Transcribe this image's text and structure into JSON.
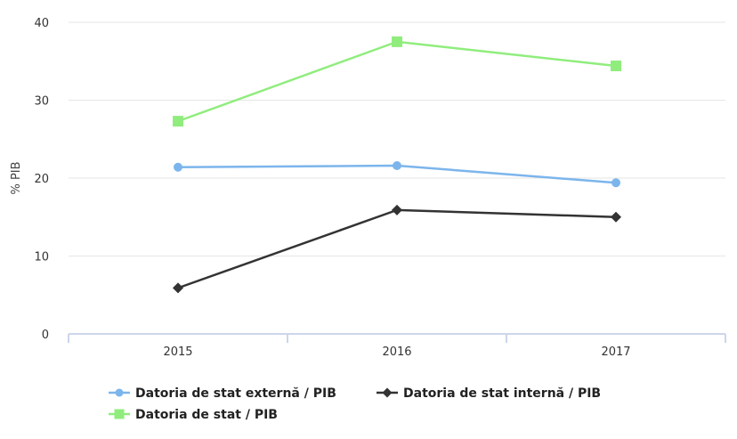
{
  "chart_data": {
    "type": "line",
    "categories": [
      "2015",
      "2016",
      "2017"
    ],
    "ylabel": "% PIB",
    "xlabel": "",
    "ylim": [
      0,
      40
    ],
    "yticks": [
      0,
      10,
      20,
      30,
      40
    ],
    "grid": true,
    "legend_position": "bottom-left",
    "series": [
      {
        "name": "Datoria de stat externă / PIB",
        "values": [
          21.4,
          21.6,
          19.4
        ],
        "color": "#7cb5ec",
        "marker": "circle"
      },
      {
        "name": "Datoria de stat internă / PIB",
        "values": [
          5.9,
          15.9,
          15.0
        ],
        "color": "#333333",
        "marker": "diamond"
      },
      {
        "name": "Datoria de stat / PIB",
        "values": [
          27.3,
          37.5,
          34.4
        ],
        "color": "#90ed7d",
        "marker": "square"
      }
    ]
  }
}
